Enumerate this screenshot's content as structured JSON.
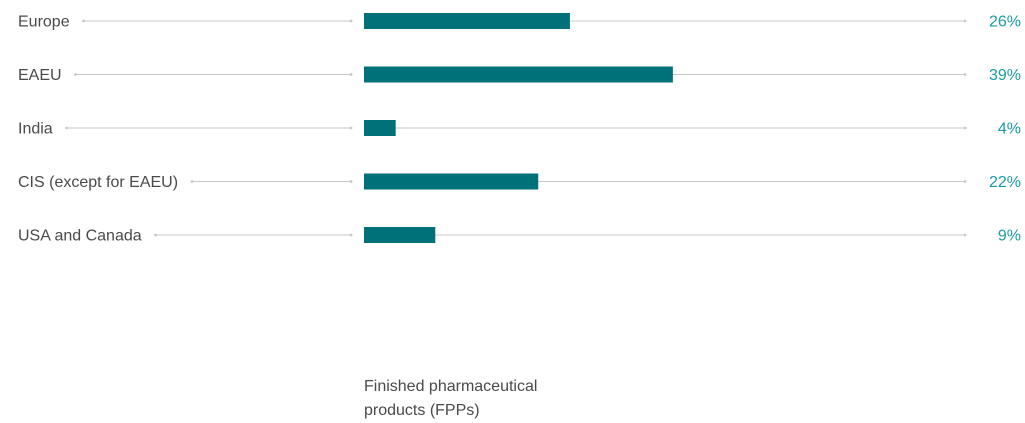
{
  "chart_data": {
    "type": "bar",
    "orientation": "horizontal",
    "categories": [
      "Europe",
      "EAEU",
      "India",
      "CIS (except for EAEU)",
      "USA and Canada"
    ],
    "values": [
      26,
      39,
      4,
      22,
      9
    ],
    "value_labels": [
      "26%",
      "39%",
      "4%",
      "22%",
      "9%"
    ],
    "unit": "%",
    "xlim": [
      0,
      100
    ],
    "grid": false,
    "legend": "none",
    "xlabel": "",
    "ylabel": "",
    "title": "",
    "colors": {
      "bar": "#007178",
      "value_label": "#1a9ba1",
      "category_label": "#4a4a4a",
      "leader_line": "#c8c8c8"
    }
  },
  "caption": {
    "line1": "Finished pharmaceutical",
    "line2": "products (FPPs)"
  }
}
